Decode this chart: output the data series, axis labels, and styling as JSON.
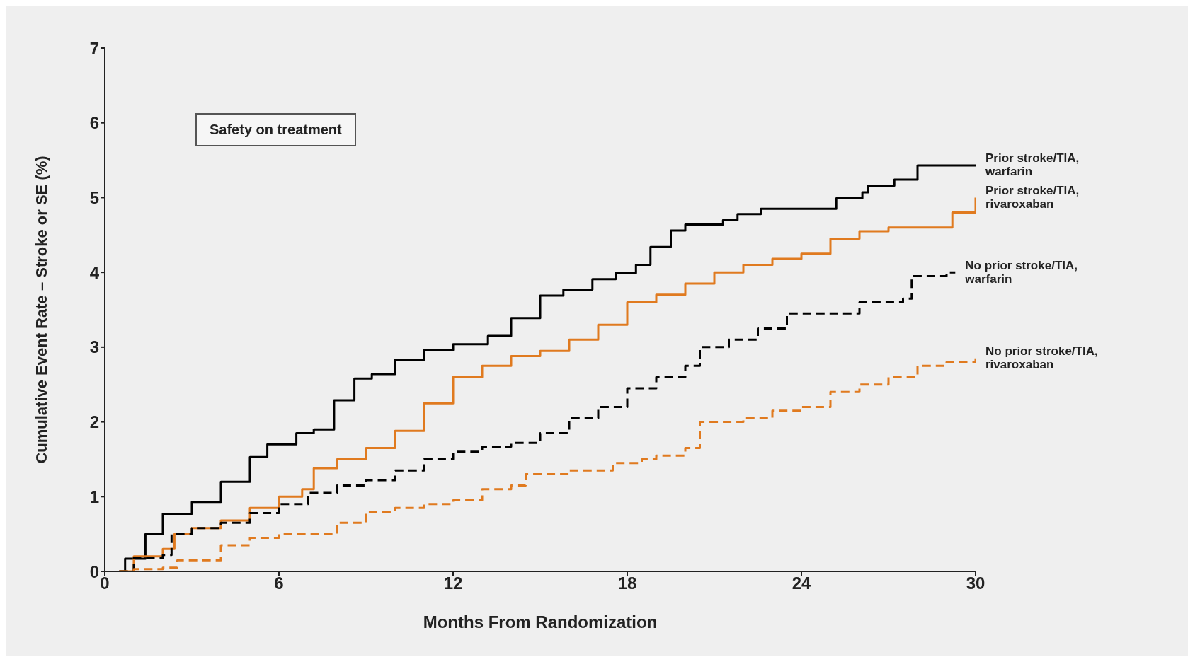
{
  "chart_data": {
    "type": "step",
    "xlabel": "Months  From Randomization",
    "ylabel": "Cumulative Event Rate – Stroke or SE (%)",
    "annotations": [
      "Safety on treatment"
    ],
    "xlim": [
      0,
      30
    ],
    "xticks": [
      0,
      6,
      12,
      18,
      24,
      30
    ],
    "ylim": [
      0,
      7
    ],
    "yticks": [
      0,
      1,
      2,
      3,
      4,
      5,
      6,
      7
    ],
    "grid": false,
    "legend": false,
    "marker": "none",
    "series": [
      {
        "name": "Prior stroke/TIA, warfarin",
        "color": "#000000",
        "line_style": "solid",
        "x": [
          0.5,
          0.7,
          1.4,
          2,
          3,
          4,
          5,
          5.6,
          6.6,
          7.2,
          7.9,
          8.6,
          9.2,
          10,
          11,
          12,
          13.2,
          14,
          15,
          15.8,
          16.8,
          17.6,
          18.3,
          18.8,
          19.5,
          20,
          21.3,
          21.8,
          22.6,
          25,
          25.2,
          26.1,
          26.3,
          27.2,
          28,
          30
        ],
        "values": [
          0,
          0.17,
          0.5,
          0.77,
          0.93,
          1.2,
          1.53,
          1.7,
          1.85,
          1.9,
          2.29,
          2.58,
          2.64,
          2.83,
          2.96,
          3.04,
          3.15,
          3.39,
          3.69,
          3.77,
          3.91,
          3.99,
          4.1,
          4.34,
          4.56,
          4.64,
          4.7,
          4.78,
          4.85,
          4.85,
          4.99,
          5.07,
          5.16,
          5.24,
          5.43,
          5.43
        ]
      },
      {
        "name": "Prior stroke/TIA, rivaroxaban",
        "color": "#e07a1f",
        "line_style": "solid",
        "x": [
          0.5,
          1,
          2,
          2.4,
          3,
          4,
          5,
          6,
          6.8,
          7.2,
          8,
          9,
          10,
          11,
          12,
          13,
          14,
          15,
          16,
          17,
          18,
          19,
          20,
          21,
          22,
          23,
          24,
          25,
          26,
          27,
          29,
          29.2,
          29.8,
          30
        ],
        "values": [
          0,
          0.2,
          0.3,
          0.5,
          0.58,
          0.68,
          0.85,
          1,
          1.1,
          1.38,
          1.5,
          1.65,
          1.88,
          2.25,
          2.6,
          2.75,
          2.88,
          2.95,
          3.1,
          3.3,
          3.6,
          3.7,
          3.85,
          4,
          4.1,
          4.18,
          4.25,
          4.45,
          4.55,
          4.6,
          4.6,
          4.8,
          4.8,
          5
        ]
      },
      {
        "name": "No prior stroke/TIA, warfarin",
        "color": "#000000",
        "line_style": "dashed",
        "x": [
          0.5,
          1,
          2,
          2.3,
          3,
          4,
          5,
          6,
          7,
          8,
          9,
          10,
          11,
          12,
          13,
          14,
          15,
          16,
          17,
          18,
          19,
          20,
          20.5,
          21.5,
          22.5,
          23.5,
          25.5,
          26,
          27.5,
          27.8,
          29,
          29.3
        ],
        "values": [
          0,
          0.18,
          0.22,
          0.5,
          0.58,
          0.65,
          0.78,
          0.9,
          1.05,
          1.15,
          1.22,
          1.35,
          1.5,
          1.6,
          1.67,
          1.72,
          1.85,
          2.05,
          2.2,
          2.45,
          2.6,
          2.75,
          3,
          3.1,
          3.25,
          3.45,
          3.45,
          3.6,
          3.65,
          3.95,
          4,
          4
        ]
      },
      {
        "name": "No prior stroke/TIA, rivaroxaban",
        "color": "#e07a1f",
        "line_style": "dashed",
        "x": [
          0.5,
          1,
          2,
          2.5,
          4,
          5,
          6,
          7,
          8,
          9,
          10,
          11,
          12,
          13,
          14,
          14.5,
          16,
          17,
          17.5,
          18.5,
          19,
          20,
          20.5,
          22,
          23,
          24,
          25,
          26,
          27,
          28,
          29,
          30
        ],
        "values": [
          0,
          0.03,
          0.05,
          0.15,
          0.35,
          0.45,
          0.5,
          0.5,
          0.65,
          0.8,
          0.85,
          0.9,
          0.95,
          1.1,
          1.15,
          1.3,
          1.35,
          1.35,
          1.45,
          1.5,
          1.55,
          1.65,
          2,
          2.05,
          2.15,
          2.2,
          2.4,
          2.5,
          2.6,
          2.75,
          2.8,
          2.85
        ]
      }
    ]
  }
}
